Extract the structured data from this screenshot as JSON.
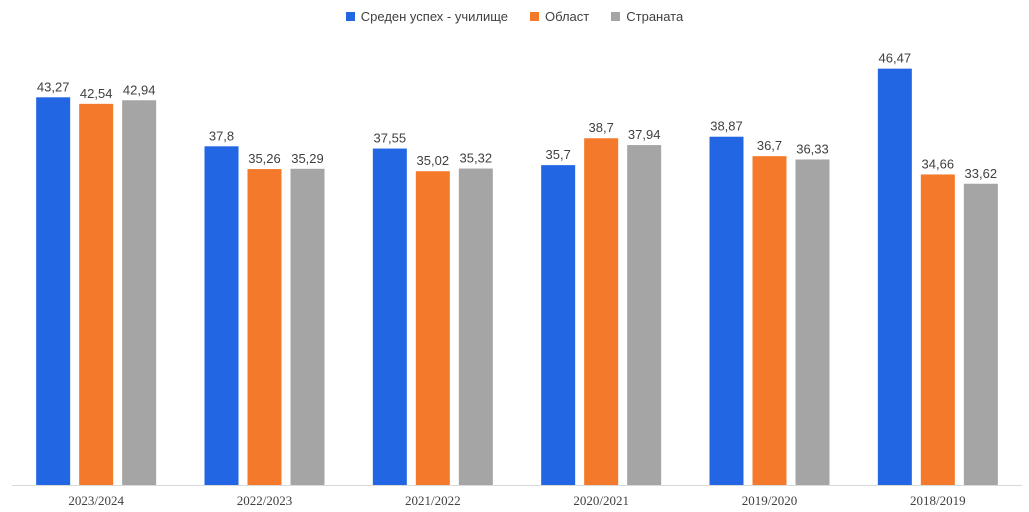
{
  "chart_data": {
    "type": "bar",
    "categories": [
      "2023/2024",
      "2022/2023",
      "2021/2022",
      "2020/2021",
      "2019/2020",
      "2018/2019"
    ],
    "series": [
      {
        "name": "Среден успех - училище",
        "color": "#2366e3",
        "values": [
          43.27,
          37.8,
          37.55,
          35.7,
          38.87,
          46.47
        ],
        "labels": [
          "43,27",
          "37,8",
          "37,55",
          "35,7",
          "38,87",
          "46,47"
        ]
      },
      {
        "name": "Област",
        "color": "#f5792a",
        "values": [
          42.54,
          35.26,
          35.02,
          38.7,
          36.7,
          34.66
        ],
        "labels": [
          "42,54",
          "35,26",
          "35,02",
          "38,7",
          "36,7",
          "34,66"
        ]
      },
      {
        "name": "Страната",
        "color": "#a5a5a5",
        "values": [
          42.94,
          35.29,
          35.32,
          37.94,
          36.33,
          33.62
        ],
        "labels": [
          "42,94",
          "35,29",
          "35,32",
          "37,94",
          "36,33",
          "33,62"
        ]
      }
    ],
    "ylim": [
      0,
      50
    ],
    "legend_position": "top-center",
    "grid": false
  }
}
